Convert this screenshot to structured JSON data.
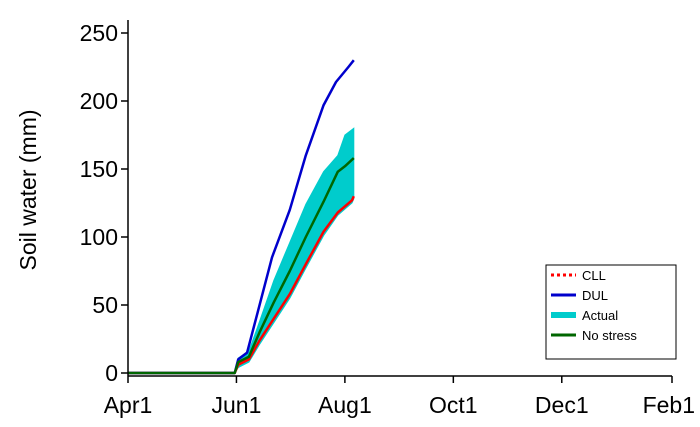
{
  "chart_data": {
    "type": "line",
    "ylabel": "Soil water (mm)",
    "xlabel": "",
    "ylim": [
      0,
      260
    ],
    "xlim": [
      "2013-04-01",
      "2014-02-01"
    ],
    "y_ticks": [
      0,
      50,
      100,
      150,
      200,
      250
    ],
    "x_ticks": [
      {
        "label": "Apr1",
        "date": "2013-04-01"
      },
      {
        "label": "Jun1",
        "date": "2013-06-01"
      },
      {
        "label": "Aug1",
        "date": "2013-08-01"
      },
      {
        "label": "Oct1",
        "date": "2013-10-01"
      },
      {
        "label": "Dec1",
        "date": "2013-12-01"
      },
      {
        "label": "Feb1",
        "date": "2014-02-01"
      }
    ],
    "grid": false,
    "legend_position": "bottom-right",
    "series": [
      {
        "name": "CLL",
        "style": "dotted",
        "color": "#ff0000",
        "points": [
          [
            "2013-04-01",
            0
          ],
          [
            "2013-05-31",
            0
          ],
          [
            "2013-06-02",
            6
          ],
          [
            "2013-06-08",
            10
          ],
          [
            "2013-06-14",
            24
          ],
          [
            "2013-06-22",
            40
          ],
          [
            "2013-07-01",
            58
          ],
          [
            "2013-07-10",
            80
          ],
          [
            "2013-07-20",
            104
          ],
          [
            "2013-07-28",
            118
          ],
          [
            "2013-08-05",
            127
          ],
          [
            "2013-08-06",
            130
          ]
        ]
      },
      {
        "name": "DUL",
        "style": "solid",
        "color": "#0000cc",
        "points": [
          [
            "2013-04-01",
            0
          ],
          [
            "2013-05-31",
            0
          ],
          [
            "2013-06-02",
            10
          ],
          [
            "2013-06-07",
            15
          ],
          [
            "2013-06-13",
            45
          ],
          [
            "2013-06-21",
            85
          ],
          [
            "2013-07-01",
            120
          ],
          [
            "2013-07-10",
            160
          ],
          [
            "2013-07-20",
            197
          ],
          [
            "2013-07-27",
            214
          ],
          [
            "2013-08-03",
            225
          ],
          [
            "2013-08-06",
            230
          ]
        ]
      },
      {
        "name": "Actual",
        "style": "band",
        "color": "#00cccc",
        "upper": [
          [
            "2013-05-31",
            0
          ],
          [
            "2013-06-02",
            11
          ],
          [
            "2013-06-08",
            16
          ],
          [
            "2013-06-14",
            38
          ],
          [
            "2013-06-22",
            68
          ],
          [
            "2013-07-01",
            96
          ],
          [
            "2013-07-10",
            124
          ],
          [
            "2013-07-20",
            148
          ],
          [
            "2013-07-28",
            160
          ],
          [
            "2013-08-01",
            175
          ],
          [
            "2013-08-06",
            180
          ]
        ],
        "lower": [
          [
            "2013-05-31",
            0
          ],
          [
            "2013-06-02",
            4
          ],
          [
            "2013-06-08",
            8
          ],
          [
            "2013-06-14",
            21
          ],
          [
            "2013-06-22",
            37
          ],
          [
            "2013-07-01",
            55
          ],
          [
            "2013-07-10",
            77
          ],
          [
            "2013-07-20",
            101
          ],
          [
            "2013-07-28",
            116
          ],
          [
            "2013-08-05",
            125
          ],
          [
            "2013-08-06",
            128
          ]
        ]
      },
      {
        "name": "No stress",
        "style": "solid",
        "color": "#006600",
        "points": [
          [
            "2013-04-01",
            0
          ],
          [
            "2013-05-31",
            0
          ],
          [
            "2013-06-02",
            8
          ],
          [
            "2013-06-08",
            12
          ],
          [
            "2013-06-14",
            30
          ],
          [
            "2013-06-22",
            52
          ],
          [
            "2013-07-01",
            75
          ],
          [
            "2013-07-10",
            100
          ],
          [
            "2013-07-20",
            126
          ],
          [
            "2013-07-28",
            148
          ],
          [
            "2013-08-01",
            152
          ],
          [
            "2013-08-06",
            158
          ]
        ]
      }
    ]
  }
}
